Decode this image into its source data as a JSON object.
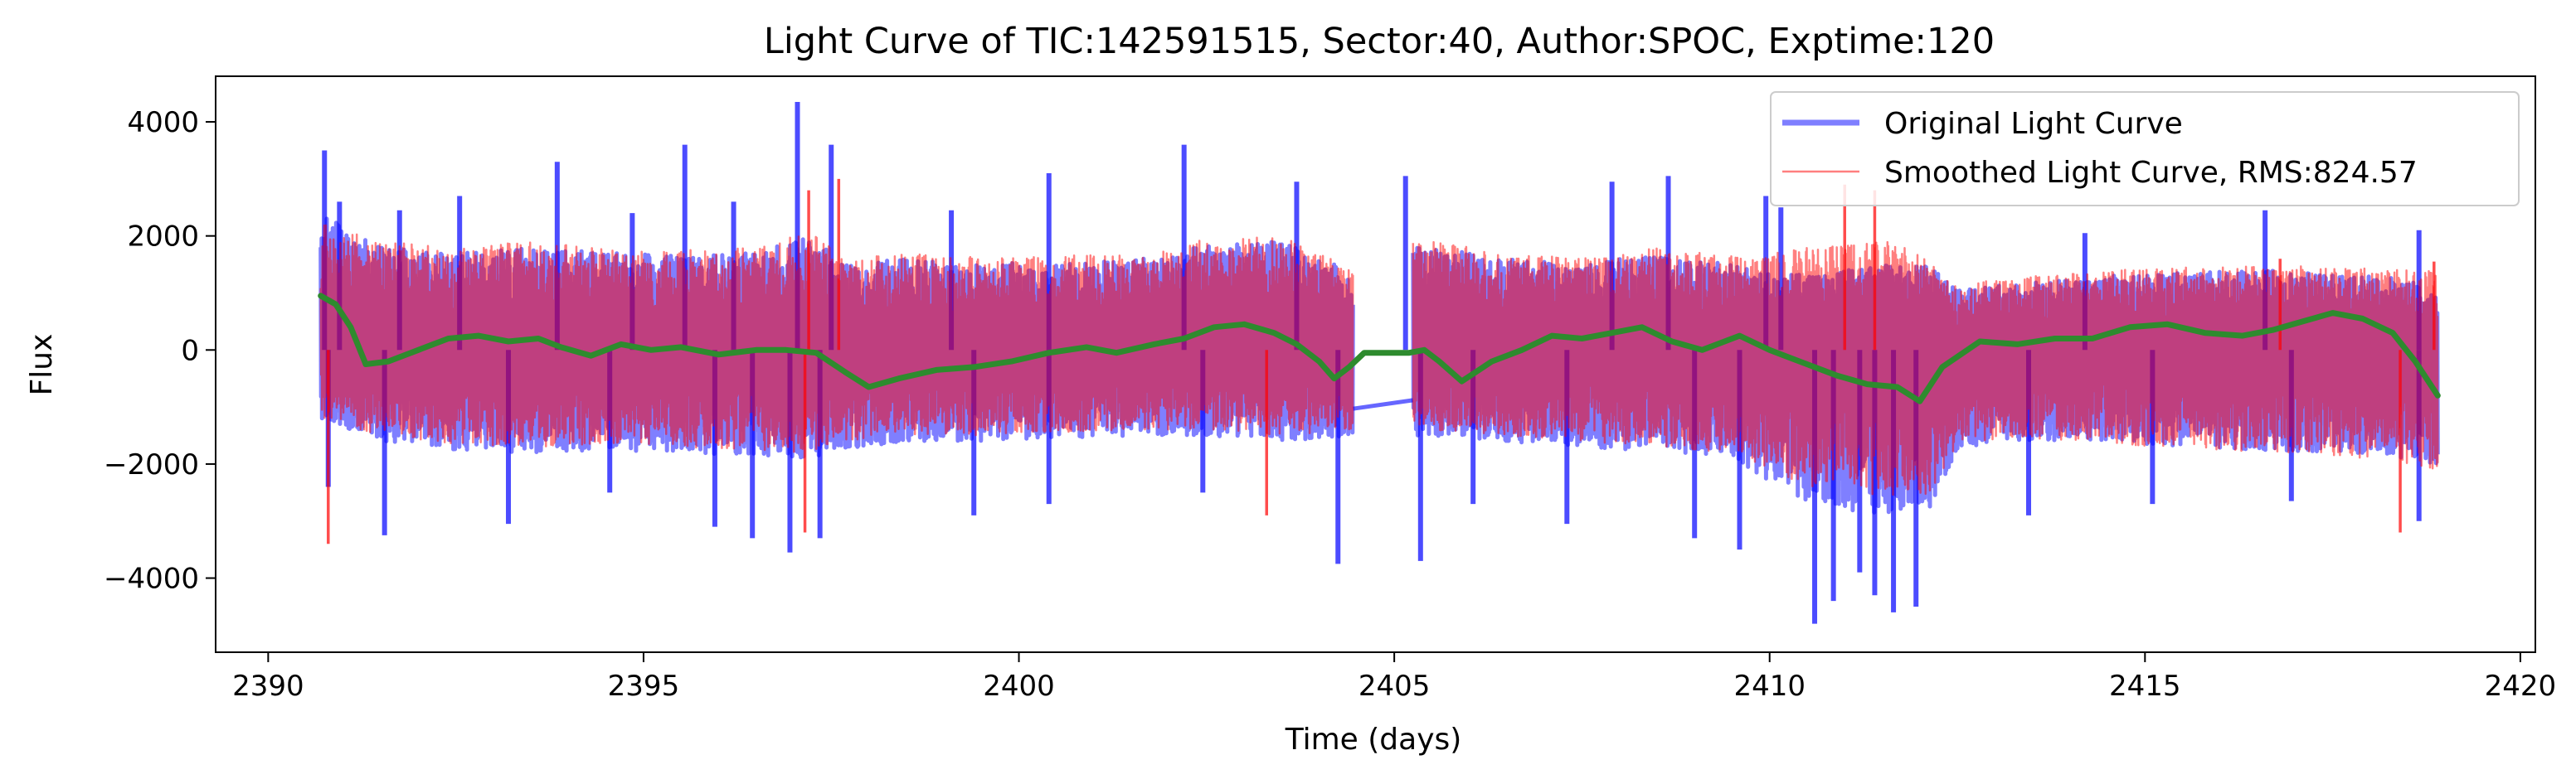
{
  "chart_data": {
    "type": "line",
    "title": "Light Curve of TIC:142591515, Sector:40, Author:SPOC, Exptime:120",
    "xlabel": "Time (days)",
    "ylabel": "Flux",
    "xlim": [
      2389.3,
      2420.2
    ],
    "ylim": [
      -5300,
      4800
    ],
    "xticks": [
      2390,
      2395,
      2400,
      2405,
      2410,
      2415,
      2420
    ],
    "xtick_labels": [
      "2390",
      "2395",
      "2400",
      "2405",
      "2410",
      "2415",
      "2420"
    ],
    "yticks": [
      -4000,
      -2000,
      0,
      2000,
      4000
    ],
    "ytick_labels": [
      "−4000",
      "−2000",
      "0",
      "2000",
      "4000"
    ],
    "grid": false,
    "legend_position": "top-right",
    "gap": [
      2404.45,
      2405.25
    ],
    "colors": {
      "original": "#0000ff",
      "smoothed": "#ff0000",
      "trend": "#2e8b2e"
    },
    "series": [
      {
        "name": "Original Light Curve",
        "style": "thick-line",
        "alpha": 0.5,
        "envelope": {
          "x": [
            2390.7,
            2391.5,
            2392.5,
            2393.5,
            2394.5,
            2395.5,
            2396.5,
            2397.2,
            2397.7,
            2398.5,
            2399.5,
            2400.5,
            2401.5,
            2402.5,
            2403.5,
            2404.4,
            2405.3,
            2406.5,
            2407.5,
            2408.5,
            2409.5,
            2410.5,
            2411.5,
            2412.1,
            2412.5,
            2413.5,
            2414.5,
            2415.5,
            2416.5,
            2417.5,
            2418.5,
            2418.9
          ],
          "upper": [
            2400,
            1800,
            1700,
            1800,
            1700,
            1650,
            1700,
            2000,
            1500,
            1600,
            1550,
            1500,
            1600,
            1850,
            1900,
            1400,
            1850,
            1600,
            1500,
            1700,
            1500,
            1300,
            1500,
            1500,
            1050,
            1200,
            1300,
            1350,
            1400,
            1350,
            1250,
            900
          ],
          "lower": [
            -1200,
            -1600,
            -1750,
            -1800,
            -1750,
            -1800,
            -1850,
            -1900,
            -1750,
            -1600,
            -1600,
            -1550,
            -1500,
            -1500,
            -1600,
            -1500,
            -1500,
            -1600,
            -1700,
            -1800,
            -1900,
            -2700,
            -2900,
            -2900,
            -1750,
            -1600,
            -1600,
            -1700,
            -1750,
            -1800,
            -1900,
            -2000
          ]
        },
        "spikes": [
          [
            2390.75,
            3500
          ],
          [
            2390.95,
            2600
          ],
          [
            2391.75,
            2450
          ],
          [
            2392.55,
            2700
          ],
          [
            2393.85,
            3300
          ],
          [
            2394.85,
            2400
          ],
          [
            2395.55,
            3600
          ],
          [
            2396.2,
            2600
          ],
          [
            2397.05,
            4350
          ],
          [
            2397.5,
            3600
          ],
          [
            2399.1,
            2450
          ],
          [
            2400.4,
            3100
          ],
          [
            2402.2,
            3600
          ],
          [
            2403.7,
            2950
          ],
          [
            2405.15,
            3050
          ],
          [
            2407.9,
            2950
          ],
          [
            2408.65,
            3050
          ],
          [
            2409.95,
            2700
          ],
          [
            2410.15,
            2500
          ],
          [
            2414.2,
            2050
          ],
          [
            2416.6,
            2450
          ],
          [
            2418.65,
            2100
          ],
          [
            2390.8,
            -2400
          ],
          [
            2391.55,
            -3250
          ],
          [
            2393.2,
            -3050
          ],
          [
            2394.55,
            -2500
          ],
          [
            2395.95,
            -3100
          ],
          [
            2396.45,
            -3300
          ],
          [
            2396.95,
            -3550
          ],
          [
            2397.35,
            -3300
          ],
          [
            2399.4,
            -2900
          ],
          [
            2400.4,
            -2700
          ],
          [
            2402.45,
            -2500
          ],
          [
            2404.25,
            -3750
          ],
          [
            2405.35,
            -3700
          ],
          [
            2406.05,
            -2700
          ],
          [
            2407.3,
            -3050
          ],
          [
            2409.0,
            -3300
          ],
          [
            2409.6,
            -3500
          ],
          [
            2410.6,
            -4800
          ],
          [
            2410.85,
            -4400
          ],
          [
            2411.2,
            -3900
          ],
          [
            2411.4,
            -4300
          ],
          [
            2411.65,
            -4600
          ],
          [
            2411.95,
            -4500
          ],
          [
            2413.45,
            -2900
          ],
          [
            2415.1,
            -2700
          ],
          [
            2416.95,
            -2650
          ],
          [
            2418.65,
            -3000
          ]
        ],
        "gap_line": {
          "x": [
            2404.45,
            2405.25
          ],
          "y": [
            -1030,
            -880
          ]
        }
      },
      {
        "name": "Smoothed Light Curve, RMS:824.57",
        "style": "thin-line",
        "alpha": 0.5,
        "envelope": {
          "x": [
            2390.7,
            2391.5,
            2392.5,
            2393.5,
            2394.5,
            2395.5,
            2396.5,
            2397.2,
            2397.7,
            2398.5,
            2399.5,
            2400.5,
            2401.5,
            2402.5,
            2403.5,
            2404.4,
            2405.3,
            2406.5,
            2407.5,
            2408.5,
            2409.5,
            2410.5,
            2411.5,
            2412.1,
            2412.5,
            2413.5,
            2414.5,
            2415.5,
            2416.5,
            2417.5,
            2418.5,
            2418.9
          ],
          "upper": [
            2300,
            1900,
            1800,
            1900,
            1800,
            1750,
            1800,
            2100,
            1600,
            1700,
            1650,
            1650,
            1700,
            1950,
            2000,
            1500,
            1950,
            1700,
            1600,
            1800,
            1650,
            1800,
            2000,
            1600,
            1150,
            1300,
            1400,
            1450,
            1500,
            1450,
            1400,
            1400
          ],
          "lower": [
            -1200,
            -1500,
            -1650,
            -1700,
            -1650,
            -1700,
            -1750,
            -1800,
            -1600,
            -1500,
            -1500,
            -1450,
            -1400,
            -1400,
            -1500,
            -1400,
            -1400,
            -1500,
            -1600,
            -1700,
            -1800,
            -2400,
            -2600,
            -2600,
            -1650,
            -1550,
            -1650,
            -1750,
            -1800,
            -1850,
            -2000,
            -2100
          ]
        },
        "spikes": [
          [
            2390.8,
            -3400
          ],
          [
            2397.2,
            2800
          ],
          [
            2397.6,
            3000
          ],
          [
            2397.15,
            -3200
          ],
          [
            2403.3,
            -2900
          ],
          [
            2411.0,
            2900
          ],
          [
            2411.4,
            2800
          ],
          [
            2418.4,
            -3200
          ],
          [
            2418.85,
            1550
          ],
          [
            2416.8,
            1600
          ]
        ]
      },
      {
        "name": "",
        "style": "trend",
        "x": [
          2390.7,
          2390.9,
          2391.1,
          2391.3,
          2391.6,
          2392.0,
          2392.4,
          2392.8,
          2393.2,
          2393.6,
          2393.9,
          2394.3,
          2394.7,
          2395.1,
          2395.5,
          2396.0,
          2396.5,
          2396.9,
          2397.3,
          2397.7,
          2398.0,
          2398.4,
          2398.9,
          2399.4,
          2399.9,
          2400.4,
          2400.9,
          2401.3,
          2401.8,
          2402.2,
          2402.6,
          2403.0,
          2403.4,
          2403.7,
          2404.0,
          2404.2,
          2404.4,
          2404.6,
          2405.0,
          2405.2,
          2405.4,
          2405.6,
          2405.9,
          2406.3,
          2406.7,
          2407.1,
          2407.5,
          2407.9,
          2408.3,
          2408.7,
          2409.1,
          2409.6,
          2410.0,
          2410.4,
          2410.9,
          2411.3,
          2411.7,
          2412.0,
          2412.3,
          2412.8,
          2413.3,
          2413.8,
          2414.3,
          2414.8,
          2415.3,
          2415.8,
          2416.3,
          2416.7,
          2417.1,
          2417.5,
          2417.9,
          2418.3,
          2418.6,
          2418.9
        ],
        "y": [
          950,
          800,
          400,
          -250,
          -200,
          0,
          200,
          250,
          150,
          200,
          50,
          -100,
          100,
          0,
          50,
          -80,
          0,
          0,
          -50,
          -400,
          -650,
          -500,
          -350,
          -300,
          -200,
          -50,
          50,
          -50,
          100,
          200,
          400,
          450,
          300,
          100,
          -200,
          -500,
          -300,
          -50,
          -50,
          -50,
          0,
          -200,
          -550,
          -200,
          0,
          250,
          200,
          300,
          400,
          150,
          0,
          250,
          0,
          -200,
          -450,
          -600,
          -650,
          -900,
          -300,
          150,
          100,
          200,
          200,
          400,
          450,
          300,
          250,
          350,
          500,
          650,
          550,
          300,
          -200,
          -800
        ]
      }
    ]
  }
}
